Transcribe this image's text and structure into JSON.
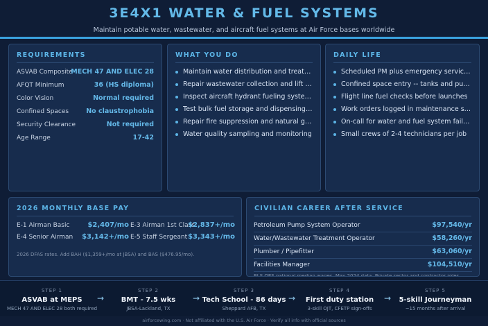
{
  "header": {
    "title": "3E4X1 WATER & FUEL SYSTEMS",
    "subtitle": "Maintain potable water, wastewater, and aircraft fuel systems at Air Force bases worldwide"
  },
  "requirements": {
    "title": "REQUIREMENTS",
    "rows": [
      {
        "label": "ASVAB Composite",
        "value": "MECH 47 AND ELEC 28"
      },
      {
        "label": "AFQT Minimum",
        "value": "36 (HS diploma)"
      },
      {
        "label": "Color Vision",
        "value": "Normal required"
      },
      {
        "label": "Confined Spaces",
        "value": "No claustrophobia"
      },
      {
        "label": "Security Clearance",
        "value": "Not required"
      },
      {
        "label": "Age Range",
        "value": "17-42"
      }
    ]
  },
  "what_you_do": {
    "title": "WHAT YOU DO",
    "items": [
      "Maintain water distribution and treatment",
      "Repair wastewater collection and lift sta...",
      "Inspect aircraft hydrant fueling systems",
      "Test bulk fuel storage and dispensing un...",
      "Repair fire suppression and natural gas l...",
      "Water quality sampling and monitoring"
    ]
  },
  "daily_life": {
    "title": "DAILY LIFE",
    "items": [
      "Scheduled PM plus emergency service c...",
      "Confined space entry -- tanks and pump...",
      "Flight line fuel checks before launches",
      "Work orders logged in maintenance syst...",
      "On-call for water and fuel system failures",
      "Small crews of 2-4 technicians per job"
    ]
  },
  "pay": {
    "title": "2026 MONTHLY BASE PAY",
    "grades": [
      {
        "label": "E-1 Airman Basic",
        "value": "$2,407/mo"
      },
      {
        "label": "E-3 Airman 1st Class",
        "value": "$2,837+/mo"
      },
      {
        "label": "E-4 Senior Airman",
        "value": "$3,142+/mo"
      },
      {
        "label": "E-5 Staff Sergeant",
        "value": "$3,343+/mo"
      }
    ],
    "note": "2026 DFAS rates. Add BAH ($1,359+/mo at JBSA) and BAS ($476.95/mo)."
  },
  "civilian": {
    "title": "CIVILIAN CAREER AFTER SERVICE",
    "rows": [
      {
        "label": "Petroleum Pump System Operator",
        "value": "$97,540/yr"
      },
      {
        "label": "Water/Wastewater Treatment Operator",
        "value": "$58,260/yr"
      },
      {
        "label": "Plumber / Pipefitter",
        "value": "$63,060/yr"
      },
      {
        "label": "Facilities Manager",
        "value": "$104,510/yr"
      }
    ],
    "note": "BLS OES national median wages, May 2024 data. Private sector and contractor roles"
  },
  "steps": [
    {
      "num": "STEP 1",
      "title": "ASVAB at MEPS",
      "sub": "MECH 47 AND ELEC 28 both required"
    },
    {
      "num": "STEP 2",
      "title": "BMT - 7.5 wks",
      "sub": "JBSA-Lackland, TX"
    },
    {
      "num": "STEP 3",
      "title": "Tech School - 86 days",
      "sub": "Sheppard AFB, TX"
    },
    {
      "num": "STEP 4",
      "title": "First duty station",
      "sub": "3-skill OJT, CFETP sign-offs"
    },
    {
      "num": "STEP 5",
      "title": "5-skill Journeyman",
      "sub": "~15 months after arrival"
    }
  ],
  "arrow_glyph": "→",
  "footer": "airforcewing.com · Not affiliated with the U.S. Air Force · Verify all info with official sources",
  "colors": {
    "accent": "#5cb4e6",
    "background": "#0f1d36",
    "card": "#172c4d"
  }
}
